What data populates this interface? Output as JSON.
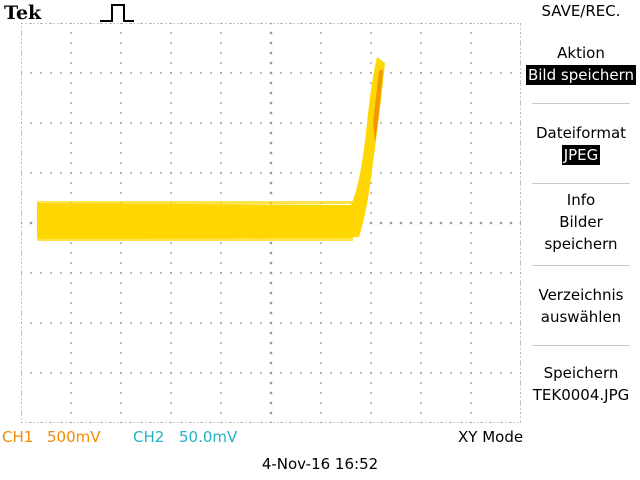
{
  "header": {
    "brand": "Tek",
    "trigger_icon": "rising-pulse-icon"
  },
  "menu": {
    "title": "SAVE/REC.",
    "items": [
      {
        "label": "Aktion",
        "value": "Bild speichern"
      },
      {
        "label": "Dateiformat",
        "value": "JPEG"
      },
      {
        "lines": [
          "Info",
          "Bilder",
          "speichern"
        ]
      },
      {
        "lines": [
          "Verzeichnis",
          "auswählen"
        ]
      },
      {
        "lines": [
          "Speichern",
          "TEK0004.JPG"
        ]
      }
    ]
  },
  "status": {
    "ch1_name": "CH1",
    "ch1_scale": "500mV",
    "ch2_name": "CH2",
    "ch2_scale": "50.0mV",
    "mode": "XY Mode"
  },
  "datetime": "4-Nov-16 16:52",
  "colors": {
    "trace": "#ffd700",
    "trace_tip": "#f28c00",
    "ch1": "#f28c00",
    "ch2": "#1fb3c4",
    "grid": "#9a9a9a"
  }
}
